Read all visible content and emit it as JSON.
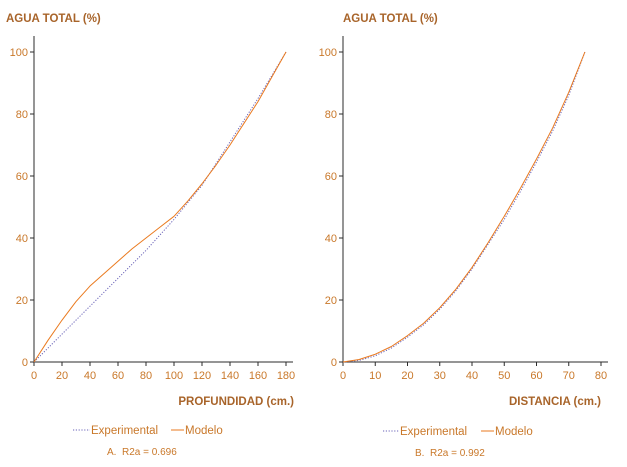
{
  "colors": {
    "text": "#a8642a",
    "tick_text": "#c9782a",
    "axis": "#2b2b2b",
    "experimental": "#6a63b8",
    "modelo": "#ea7a1f"
  },
  "chart_data": [
    {
      "type": "line",
      "ylabel": "AGUA TOTAL (%)",
      "xlabel": "PROFUNDIDAD (cm.)",
      "xlim": [
        0,
        180
      ],
      "ylim": [
        0,
        100
      ],
      "xticks": [
        "0",
        "20",
        "40",
        "60",
        "80",
        "100",
        "120",
        "140",
        "160",
        "180"
      ],
      "yticks": [
        "0",
        "20",
        "40",
        "60",
        "80",
        "100"
      ],
      "grid": false,
      "legend_position": "bottom",
      "legend": {
        "experimental": "Experimental",
        "modelo": "Modelo"
      },
      "caption": "A.  R2a = 0.696",
      "series": [
        {
          "name": "Experimental",
          "style": "dotted",
          "x": [
            0,
            20,
            40,
            60,
            80,
            100,
            120,
            140,
            160,
            180
          ],
          "y": [
            0,
            9,
            18,
            27,
            36,
            46,
            57,
            71,
            85,
            100
          ]
        },
        {
          "name": "Modelo",
          "style": "solid",
          "x": [
            0,
            10,
            20,
            30,
            40,
            50,
            60,
            70,
            80,
            90,
            100,
            110,
            120,
            130,
            140,
            150,
            160,
            170,
            180
          ],
          "y": [
            0,
            7,
            13.5,
            19.5,
            24.5,
            28.5,
            32.5,
            36.5,
            40,
            43.5,
            47,
            52,
            57.5,
            63.5,
            70,
            77,
            84,
            92,
            100
          ]
        }
      ]
    },
    {
      "type": "line",
      "ylabel": "AGUA TOTAL (%)",
      "xlabel": "DISTANCIA (cm.)",
      "xlim": [
        0,
        80
      ],
      "ylim": [
        0,
        100
      ],
      "xticks": [
        "0",
        "10",
        "20",
        "30",
        "40",
        "50",
        "60",
        "70",
        "80"
      ],
      "yticks": [
        "0",
        "20",
        "40",
        "60",
        "80",
        "100"
      ],
      "grid": false,
      "legend_position": "bottom",
      "legend": {
        "experimental": "Experimental",
        "modelo": "Modelo"
      },
      "caption": "B.  R2a = 0.992",
      "series": [
        {
          "name": "Experimental",
          "style": "dotted",
          "x": [
            0,
            5,
            10,
            15,
            20,
            25,
            30,
            35,
            40,
            45,
            50,
            55,
            60,
            65,
            70,
            75
          ],
          "y": [
            0,
            0.5,
            2,
            4.5,
            8,
            12,
            17,
            23,
            30,
            38,
            46,
            55,
            64.5,
            74.5,
            86,
            100
          ]
        },
        {
          "name": "Modelo",
          "style": "solid",
          "x": [
            0,
            5,
            10,
            15,
            20,
            25,
            30,
            35,
            40,
            45,
            50,
            55,
            60,
            65,
            70,
            75
          ],
          "y": [
            0,
            0.8,
            2.5,
            5,
            8.5,
            12.5,
            17.5,
            23.5,
            30.5,
            38.5,
            47,
            56,
            65.5,
            75.5,
            87,
            100
          ]
        }
      ]
    }
  ]
}
